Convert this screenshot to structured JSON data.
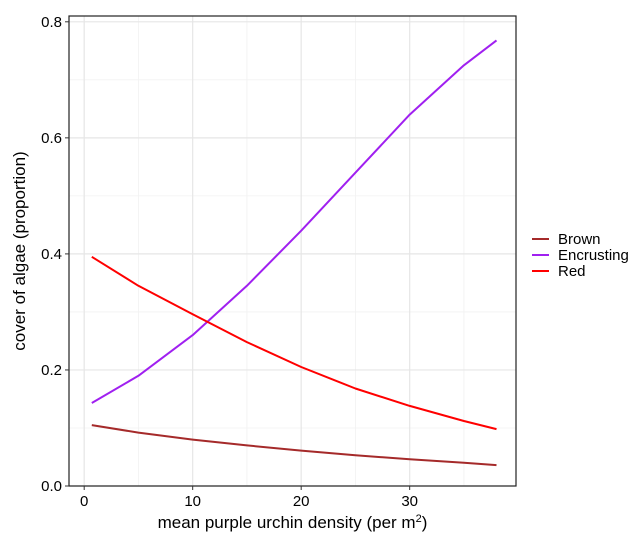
{
  "chart_data": {
    "type": "line",
    "xlabel": "mean purple urchin density (per m",
    "xlabel_superscript": "2",
    "xlabel_suffix": ")",
    "ylabel": "cover of algae (proportion)",
    "xlim": [
      -1.4,
      39.8
    ],
    "ylim": [
      0.0,
      0.81
    ],
    "x_ticks": [
      0,
      10,
      20,
      30
    ],
    "x_tick_labels": [
      "0",
      "10",
      "20",
      "30"
    ],
    "x_minor_ticks": [
      5,
      15,
      25,
      35
    ],
    "y_ticks": [
      0.0,
      0.2,
      0.4,
      0.6,
      0.8
    ],
    "y_tick_labels": [
      "0.0",
      "0.2",
      "0.4",
      "0.6",
      "0.8"
    ],
    "y_minor_ticks": [
      0.1,
      0.3,
      0.5,
      0.7
    ],
    "grid": true,
    "legend_position": "right",
    "series": [
      {
        "name": "Brown",
        "color": "#A52A2A",
        "x": [
          0.7,
          5,
          10,
          15,
          20,
          25,
          30,
          35,
          38
        ],
        "y": [
          0.105,
          0.092,
          0.08,
          0.07,
          0.061,
          0.053,
          0.046,
          0.04,
          0.036
        ]
      },
      {
        "name": "Encrusting",
        "color": "#A020F0",
        "x": [
          0.7,
          5,
          10,
          15,
          20,
          25,
          30,
          35,
          38
        ],
        "y": [
          0.143,
          0.19,
          0.26,
          0.345,
          0.44,
          0.54,
          0.64,
          0.725,
          0.768
        ]
      },
      {
        "name": "Red",
        "color": "#FF0000",
        "x": [
          0.7,
          5,
          10,
          15,
          20,
          25,
          30,
          35,
          38
        ],
        "y": [
          0.395,
          0.345,
          0.296,
          0.248,
          0.205,
          0.168,
          0.138,
          0.112,
          0.098
        ]
      }
    ]
  }
}
